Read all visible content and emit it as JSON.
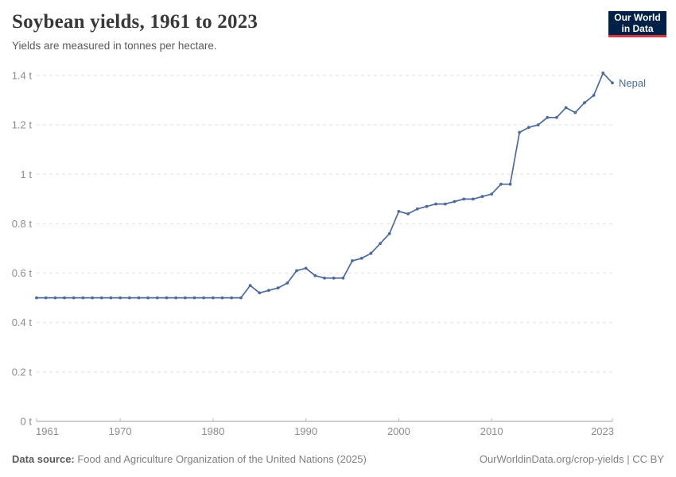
{
  "header": {
    "title": "Soybean yields, 1961 to 2023",
    "subtitle": "Yields are measured in tonnes per hectare.",
    "logo_line1": "Our World",
    "logo_line2": "in Data"
  },
  "footer": {
    "source_label": "Data source:",
    "source_text": " Food and Agriculture Organization of the United Nations (2025)",
    "credit": "OurWorldinData.org/crop-yields | CC BY"
  },
  "colors": {
    "line": "#4c6a9c",
    "grid": "#e1e1e1",
    "axis": "#9e9e9e",
    "tick": "#bdbdbd",
    "tick_text": "#8c8c8c",
    "logo_bg": "#002147",
    "logo_accent": "#d7373f"
  },
  "chart_data": {
    "type": "line",
    "title": "Soybean yields, 1961 to 2023",
    "subtitle": "Yields are measured in tonnes per hectare.",
    "xlabel": "",
    "ylabel": "tonnes per hectare",
    "xlim": [
      1961,
      2023
    ],
    "ylim": [
      0,
      1.4
    ],
    "grid": "horizontal-dashed",
    "legend": "end-of-line-label",
    "xticks": {
      "values": [
        1961,
        1970,
        1980,
        1990,
        2000,
        2010,
        2023
      ],
      "labels": [
        "1961",
        "1970",
        "1980",
        "1990",
        "2000",
        "2010",
        "2023"
      ]
    },
    "yticks": {
      "values": [
        0,
        0.2,
        0.4,
        0.6,
        0.8,
        1,
        1.2,
        1.4
      ],
      "labels": [
        "0 t",
        "0.2 t",
        "0.4 t",
        "0.6 t",
        "0.8 t",
        "1 t",
        "1.2 t",
        "1.4 t"
      ]
    },
    "x": [
      1961,
      1962,
      1963,
      1964,
      1965,
      1966,
      1967,
      1968,
      1969,
      1970,
      1971,
      1972,
      1973,
      1974,
      1975,
      1976,
      1977,
      1978,
      1979,
      1980,
      1981,
      1982,
      1983,
      1984,
      1985,
      1986,
      1987,
      1988,
      1989,
      1990,
      1991,
      1992,
      1993,
      1994,
      1995,
      1996,
      1997,
      1998,
      1999,
      2000,
      2001,
      2002,
      2003,
      2004,
      2005,
      2006,
      2007,
      2008,
      2009,
      2010,
      2011,
      2012,
      2013,
      2014,
      2015,
      2016,
      2017,
      2018,
      2019,
      2020,
      2021,
      2022,
      2023
    ],
    "series": [
      {
        "name": "Nepal",
        "color": "#4c6a9c",
        "values": [
          0.5,
          0.5,
          0.5,
          0.5,
          0.5,
          0.5,
          0.5,
          0.5,
          0.5,
          0.5,
          0.5,
          0.5,
          0.5,
          0.5,
          0.5,
          0.5,
          0.5,
          0.5,
          0.5,
          0.5,
          0.5,
          0.5,
          0.5,
          0.55,
          0.52,
          0.53,
          0.54,
          0.56,
          0.61,
          0.62,
          0.59,
          0.58,
          0.58,
          0.58,
          0.65,
          0.66,
          0.68,
          0.72,
          0.76,
          0.85,
          0.84,
          0.86,
          0.87,
          0.88,
          0.88,
          0.89,
          0.9,
          0.9,
          0.91,
          0.92,
          0.96,
          0.96,
          1.17,
          1.19,
          1.2,
          1.23,
          1.23,
          1.27,
          1.25,
          1.29,
          1.32,
          1.41,
          1.37
        ]
      }
    ]
  }
}
